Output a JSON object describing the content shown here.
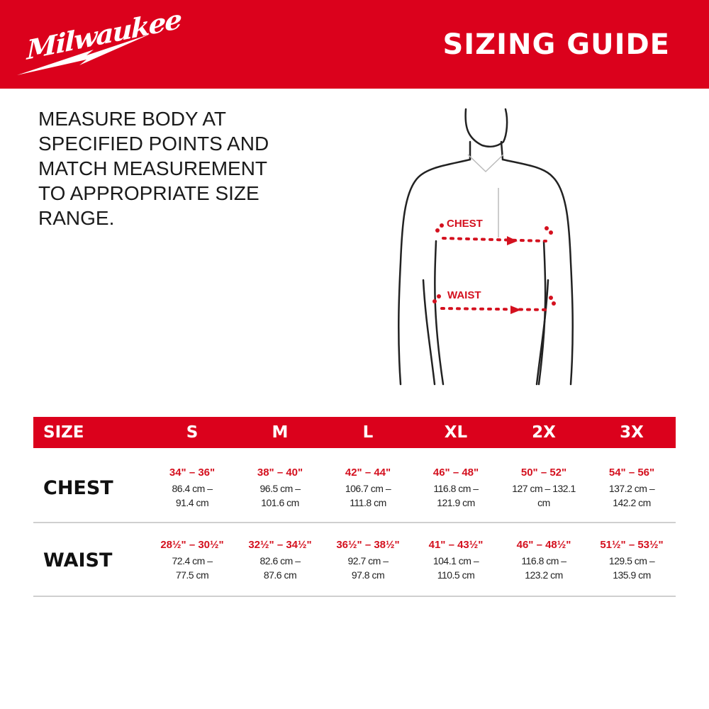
{
  "brand": {
    "logo_text": "Milwaukee",
    "color": "#db011c"
  },
  "header": {
    "title": "SIZING GUIDE"
  },
  "instructions": "MEASURE BODY AT SPECIFIED POINTS AND MATCH MEASUREMENT TO APPROPRIATE SIZE RANGE.",
  "figure": {
    "chest_label": "CHEST",
    "waist_label": "WAIST"
  },
  "table": {
    "header": [
      "SIZE",
      "S",
      "M",
      "L",
      "XL",
      "2X",
      "3X"
    ],
    "rows": [
      {
        "label": "CHEST",
        "cells": [
          {
            "in": "34\" – 36\"",
            "cm1": "86.4 cm –",
            "cm2": "91.4 cm"
          },
          {
            "in": "38\" – 40\"",
            "cm1": "96.5 cm –",
            "cm2": "101.6 cm"
          },
          {
            "in": "42\" – 44\"",
            "cm1": "106.7 cm –",
            "cm2": "111.8 cm"
          },
          {
            "in": "46\" – 48\"",
            "cm1": "116.8 cm –",
            "cm2": "121.9 cm"
          },
          {
            "in": "50\" – 52\"",
            "cm1": "127 cm –  132.1",
            "cm2": "cm"
          },
          {
            "in": "54\" – 56\"",
            "cm1": "137.2 cm –",
            "cm2": "142.2 cm"
          }
        ]
      },
      {
        "label": "WAIST",
        "cells": [
          {
            "in": "28½\" – 30½\"",
            "cm1": "72.4 cm –",
            "cm2": "77.5 cm"
          },
          {
            "in": "32½\" – 34½\"",
            "cm1": "82.6 cm –",
            "cm2": "87.6 cm"
          },
          {
            "in": "36½\" – 38½\"",
            "cm1": "92.7 cm –",
            "cm2": "97.8 cm"
          },
          {
            "in": "41\" – 43½\"",
            "cm1": "104.1 cm –",
            "cm2": "110.5 cm"
          },
          {
            "in": "46\" – 48½\"",
            "cm1": "116.8 cm –",
            "cm2": "123.2 cm"
          },
          {
            "in": "51½\" – 53½\"",
            "cm1": "129.5 cm –",
            "cm2": "135.9 cm"
          }
        ]
      }
    ]
  }
}
